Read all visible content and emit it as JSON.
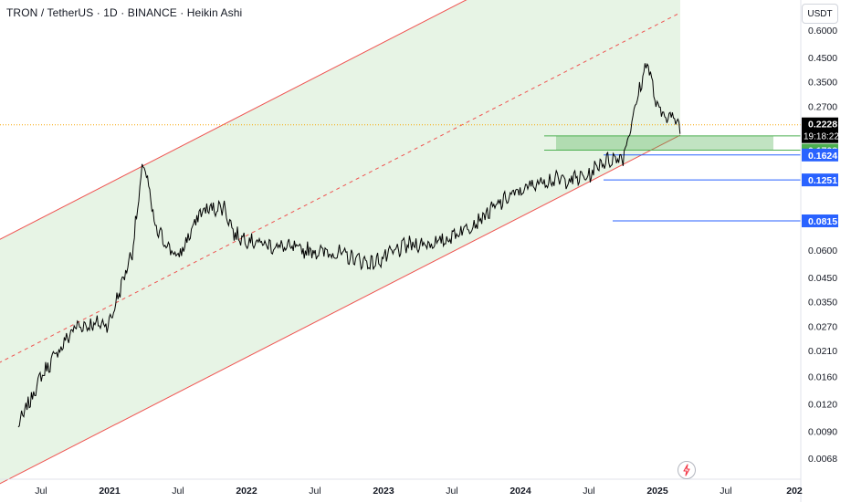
{
  "header": {
    "title": "TRON / TetherUS · 1D · BINANCE · Heikin Ashi",
    "currency": "USDT"
  },
  "icons": {
    "alert": "lightning-bolt-icon"
  },
  "colors": {
    "channel_line": "#ef5350",
    "channel_fill": "#e3f2e1",
    "price_line": "#000000",
    "green_level": "#4caf50",
    "blue_level": "#2962ff",
    "current_price_line": "#f7a600"
  },
  "chart_data": {
    "type": "line",
    "title": "TRON / TetherUS · 1D · BINANCE · Heikin Ashi",
    "scale": "log",
    "x": [
      "2020-05",
      "2020-07",
      "2020-10",
      "2021-01",
      "2021-03",
      "2021-04",
      "2021-05",
      "2021-07",
      "2021-09",
      "2021-11",
      "2021-12",
      "2022-03",
      "2022-06",
      "2022-09",
      "2022-12",
      "2023-03",
      "2023-06",
      "2023-09",
      "2023-12",
      "2024-03",
      "2024-05",
      "2024-07",
      "2024-08",
      "2024-10",
      "2024-12-04",
      "2025-01",
      "2025-02",
      "2025-03"
    ],
    "series": [
      {
        "values": [
          0.0095,
          0.016,
          0.027,
          0.028,
          0.06,
          0.155,
          0.075,
          0.055,
          0.09,
          0.095,
          0.07,
          0.063,
          0.06,
          0.058,
          0.052,
          0.063,
          0.065,
          0.08,
          0.105,
          0.125,
          0.125,
          0.13,
          0.15,
          0.16,
          0.44,
          0.26,
          0.245,
          0.2228
        ]
      }
    ],
    "levels": [
      {
        "label": "0.1984",
        "value": 0.1984,
        "style": "green"
      },
      {
        "label": "0.1708",
        "value": 0.1708,
        "style": "green"
      },
      {
        "label": "0.1624",
        "value": 0.1624,
        "style": "blue"
      },
      {
        "label": "0.1251",
        "value": 0.1251,
        "style": "blue"
      },
      {
        "label": "0.0815",
        "value": 0.0815,
        "style": "blue"
      }
    ],
    "current_price": {
      "value": "0.2228",
      "countdown": "19:18:22"
    },
    "ylim": [
      0.0055,
      0.75
    ],
    "yticks": [
      {
        "label": "0.6000",
        "value": 0.6
      },
      {
        "label": "0.4500",
        "value": 0.45
      },
      {
        "label": "0.3500",
        "value": 0.35
      },
      {
        "label": "0.2700",
        "value": 0.27
      },
      {
        "label": "0.0600",
        "value": 0.06
      },
      {
        "label": "0.0450",
        "value": 0.045
      },
      {
        "label": "0.0350",
        "value": 0.035
      },
      {
        "label": "0.0270",
        "value": 0.027
      },
      {
        "label": "0.0210",
        "value": 0.021
      },
      {
        "label": "0.0160",
        "value": 0.016
      },
      {
        "label": "0.0120",
        "value": 0.012
      },
      {
        "label": "0.0090",
        "value": 0.009
      },
      {
        "label": "0.0068",
        "value": 0.0068
      }
    ],
    "xticks": [
      {
        "label": "Jul",
        "date": "2020-07"
      },
      {
        "label": "2021",
        "date": "2021-01"
      },
      {
        "label": "Jul",
        "date": "2021-07"
      },
      {
        "label": "2022",
        "date": "2022-01"
      },
      {
        "label": "Jul",
        "date": "2022-07"
      },
      {
        "label": "2023",
        "date": "2023-01"
      },
      {
        "label": "Jul",
        "date": "2023-07"
      },
      {
        "label": "2024",
        "date": "2024-01"
      },
      {
        "label": "Jul",
        "date": "2024-07"
      },
      {
        "label": "2025",
        "date": "2025-01"
      },
      {
        "label": "Jul",
        "date": "2025-07"
      },
      {
        "label": "202",
        "date": "2026-01"
      }
    ],
    "channel": {
      "lower": {
        "start": [
          "2020-01",
          0.0045
        ],
        "end": [
          "2025-03",
          0.2
        ]
      },
      "upper": {
        "start": [
          "2020-01",
          0.058
        ],
        "end": [
          "2025-03",
          2.6
        ]
      },
      "middle": {
        "start": [
          "2020-01",
          0.016
        ],
        "end": [
          "2025-03",
          0.72
        ]
      }
    },
    "grid": false
  }
}
